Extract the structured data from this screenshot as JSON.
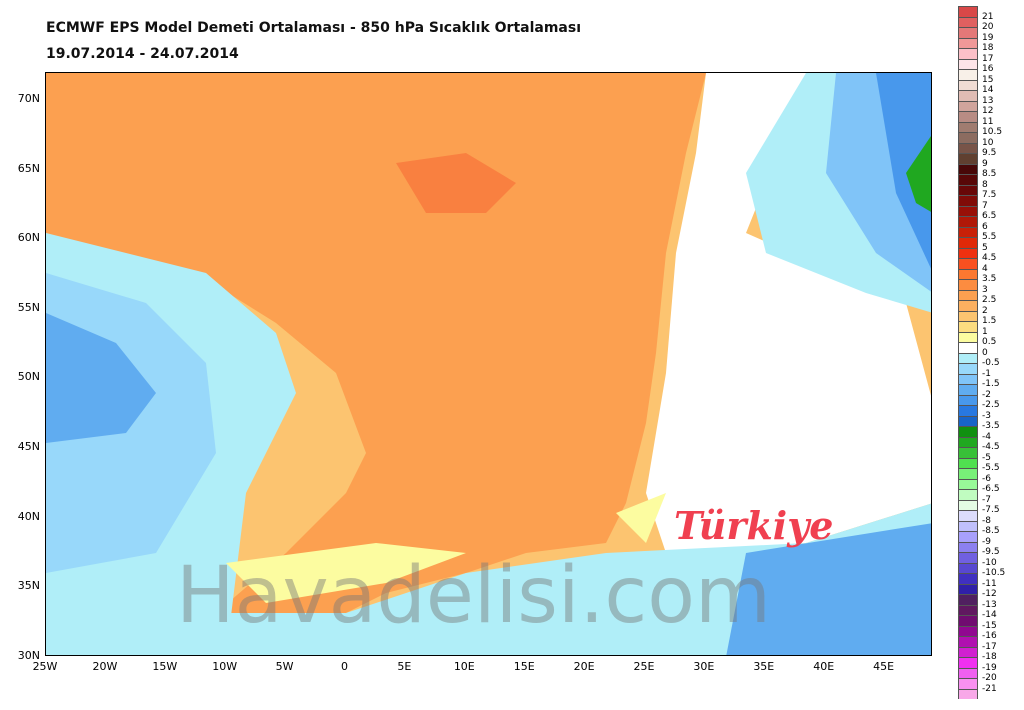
{
  "title": "ECMWF EPS Model Demeti Ortalaması - 850 hPa Sıcaklık Ortalaması",
  "date_range": "19.07.2014 - 24.07.2014",
  "watermark": "Havadelisi.com",
  "region_label": "Türkiye",
  "lat_ticks": [
    "70N",
    "65N",
    "60N",
    "55N",
    "50N",
    "45N",
    "40N",
    "35N",
    "30N"
  ],
  "lon_ticks": [
    "25W",
    "20W",
    "15W",
    "10W",
    "5W",
    "0",
    "5E",
    "10E",
    "15E",
    "20E",
    "25E",
    "30E",
    "35E",
    "40E",
    "45E"
  ],
  "legend": {
    "labels": [
      "21",
      "20",
      "19",
      "18",
      "17",
      "16",
      "15",
      "14",
      "13",
      "12",
      "11",
      "10.5",
      "10",
      "9.5",
      "9",
      "8.5",
      "8",
      "7.5",
      "7",
      "6.5",
      "6",
      "5.5",
      "5",
      "4.5",
      "4",
      "3.5",
      "3",
      "2.5",
      "2",
      "1.5",
      "1",
      "0.5",
      "0",
      "-0.5",
      "-1",
      "-1.5",
      "-2",
      "-2.5",
      "-3",
      "-3.5",
      "-4",
      "-4.5",
      "-5",
      "-5.5",
      "-6",
      "-6.5",
      "-7",
      "-7.5",
      "-8",
      "-8.5",
      "-9",
      "-9.5",
      "-10",
      "-10.5",
      "-11",
      "-12",
      "-13",
      "-14",
      "-15",
      "-16",
      "-17",
      "-18",
      "-19",
      "-20",
      "-21"
    ],
    "colors": [
      "#d84848",
      "#e06060",
      "#e47878",
      "#f09898",
      "#fcc0c8",
      "#fde4e8",
      "#f8f0e8",
      "#f0dcd4",
      "#e0bcb4",
      "#d0a49c",
      "#b88c84",
      "#a07c70",
      "#8c6c60",
      "#785448",
      "#604030",
      "#480808",
      "#580808",
      "#680808",
      "#800c08",
      "#981008",
      "#b01808",
      "#c82008",
      "#e02808",
      "#f03010",
      "#f85020",
      "#fc7830",
      "#fc8c40",
      "#fca050",
      "#fcb060",
      "#fcc470",
      "#fcdc80",
      "#fcfca0",
      "#ffffff",
      "#b0eef8",
      "#98d8fa",
      "#80c4f8",
      "#60acf0",
      "#4898ec",
      "#2878e0",
      "#1864c8",
      "#109010",
      "#20a820",
      "#38c038",
      "#50e050",
      "#78f078",
      "#98f898",
      "#c0fcc0",
      "#e4fce4",
      "#dcdcfc",
      "#c0c0fc",
      "#a8a0fc",
      "#8c80f0",
      "#7060e0",
      "#5848d0",
      "#4030c0",
      "#3020a8",
      "#502060",
      "#601860",
      "#700c70",
      "#900890",
      "#b010b0",
      "#d020d0",
      "#f030f0",
      "#f060f0",
      "#f890f0",
      "#f8a8e8"
    ]
  }
}
